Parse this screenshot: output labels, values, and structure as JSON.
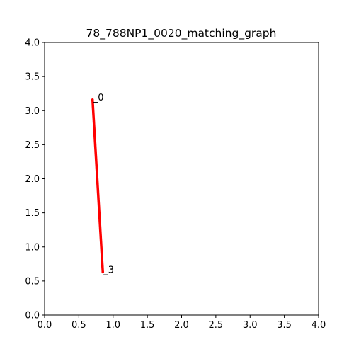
{
  "chart_data": {
    "type": "line",
    "title": "78_788NP1_0020_matching_graph",
    "xlabel": "",
    "ylabel": "",
    "xlim": [
      0.0,
      4.0
    ],
    "ylim": [
      0.0,
      4.0
    ],
    "x_ticks": [
      "0.0",
      "0.5",
      "1.0",
      "1.5",
      "2.0",
      "2.5",
      "3.0",
      "3.5",
      "4.0"
    ],
    "y_ticks": [
      "0.0",
      "0.5",
      "1.0",
      "1.5",
      "2.0",
      "2.5",
      "3.0",
      "3.5",
      "4.0"
    ],
    "grid": false,
    "nodes": [
      {
        "label": "_0",
        "x": 0.7,
        "y": 3.16
      },
      {
        "label": "_3",
        "x": 0.85,
        "y": 0.63
      }
    ],
    "edges": [
      {
        "from": 0,
        "to": 1,
        "color": "#ff0000"
      }
    ]
  }
}
